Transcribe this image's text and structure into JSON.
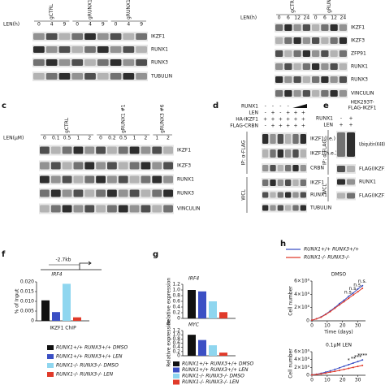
{
  "panels": {
    "a": {
      "time_label": "LEN(h)",
      "lanes": [
        "0",
        "4",
        "9",
        "0",
        "4",
        "9",
        "0",
        "4",
        "9"
      ],
      "samples": [
        "gCTRL",
        "gRUNX1",
        "gRUNX1 gRUNX3"
      ],
      "rows": [
        "IKZF1",
        "RUNX1",
        "RUNX3",
        "TUBULIN"
      ]
    },
    "b": {
      "time_label": "LEN(h)",
      "lanes": [
        "0",
        "6",
        "12",
        "24",
        "0",
        "6",
        "12",
        "24"
      ],
      "samples": [
        "gCTRL",
        "gRUNX1 gRUNX3"
      ],
      "rows": [
        "IKZF1",
        "IKZF3",
        "ZFP91",
        "RUNX1",
        "RUNX3",
        "VINCULIN"
      ]
    },
    "c": {
      "letter": "c",
      "dose_label": "LEN(μM)",
      "lanes": [
        "0",
        "0.1",
        "0.5",
        "1",
        "2",
        "0",
        "0.2",
        "0.5",
        "1",
        "2",
        "1",
        "2"
      ],
      "samples": [
        "gCTRL",
        "gRUNX1 #1",
        "gRUNX3 #6"
      ],
      "rows": [
        "IKZF1",
        "IKZF3",
        "RUNX1",
        "RUNX3",
        "VINCULIN"
      ]
    },
    "d": {
      "letter": "d",
      "conditions": [
        {
          "name": "RUNX1",
          "marks": [
            "-",
            "-",
            "-",
            "-"
          ]
        },
        {
          "name": "LEN",
          "marks": [
            "-",
            "+",
            "-",
            "+",
            "+",
            "+"
          ]
        },
        {
          "name": "HA-IKZF1",
          "marks": [
            "+",
            "+",
            "+",
            "+",
            "+",
            "+"
          ]
        },
        {
          "name": "FLAG-CRBN",
          "marks": [
            "-",
            "+",
            "+",
            "+",
            "+",
            "+"
          ]
        }
      ],
      "groups": [
        "IP: α-FLAG",
        "WCL"
      ],
      "rows": [
        "IKZF1(l.e.)",
        "IKZF1(h.e.)",
        "CRBN",
        "IKZF1",
        "RUNX1",
        "TUBULIN"
      ]
    },
    "e": {
      "letter": "e",
      "title": [
        "HEK293T-",
        "FLAG-IKZF1"
      ],
      "conditions": [
        {
          "name": "RUNX1",
          "marks": [
            "-",
            "+"
          ]
        },
        {
          "name": "LEN",
          "marks": [
            "+",
            "+"
          ]
        }
      ],
      "groups": [
        "IP: α-FLAG",
        "WCL"
      ],
      "rows": [
        "Ubiquitin(K48)",
        "FLAG(IKZF1)",
        "RUNX1",
        "FLAG(IKZF1)"
      ]
    }
  },
  "chart_data": [
    {
      "type": "bar",
      "letter": "f",
      "region": "-2.7kb",
      "gene": "IRF4",
      "ylabel": "% of Input",
      "categories": [
        "IKZF1 ChIP"
      ],
      "ylim": [
        0,
        0.02
      ],
      "yticks": [
        0,
        0.005,
        {
          "value": 0.01,
          "label": "0.010"
        },
        0.015,
        {
          "value": 0.02,
          "label": "0.020"
        }
      ],
      "series": [
        {
          "name": "RUNX1+/+ RUNX3+/+ DMSO",
          "color": "#111111",
          "values": [
            0.0105
          ]
        },
        {
          "name": "RUNX1+/+ RUNX3+/+ LEN",
          "color": "#3b4fc4",
          "values": [
            0.0045
          ]
        },
        {
          "name": "RUNX1-/- RUNX3-/- DMSO",
          "color": "#8fd6ef",
          "values": [
            0.019
          ]
        },
        {
          "name": "RUNX1-/- RUNX3-/- LEN",
          "color": "#e03a2a",
          "values": [
            0.0018
          ]
        }
      ]
    },
    {
      "type": "bar",
      "letter": "g",
      "title": "IRF4",
      "ylabel": "Relative expression",
      "ylim": [
        0,
        1.2
      ],
      "yticks": [
        0,
        0.2,
        0.4,
        0.6,
        0.8,
        {
          "value": 1,
          "label": "1.0"
        },
        1.2
      ],
      "series": [
        {
          "color": "#111111",
          "values": [
            1.0
          ]
        },
        {
          "color": "#3b4fc4",
          "values": [
            0.95
          ]
        },
        {
          "color": "#8fd6ef",
          "values": [
            0.6
          ]
        },
        {
          "color": "#e03a2a",
          "values": [
            0.22
          ]
        }
      ]
    },
    {
      "type": "bar",
      "title": "MYC",
      "ylabel": "Relative expression",
      "ylim": [
        0,
        1.2
      ],
      "yticks": [
        0,
        0.2,
        0.4,
        0.6,
        0.8,
        {
          "value": 1,
          "label": "1.0"
        },
        1.2
      ],
      "series": [
        {
          "name": "RUNX1+/+ RUNX3+/+ DMSO",
          "color": "#111111",
          "values": [
            1.0
          ]
        },
        {
          "name": "RUNX1+/+ RUNX3+/+ LEN",
          "color": "#3b4fc4",
          "values": [
            0.75
          ]
        },
        {
          "name": "RUNX1-/- RUNX3-/- DMSO",
          "color": "#8fd6ef",
          "values": [
            0.5
          ]
        },
        {
          "name": "RUNX1-/- RUNX3-/- LEN",
          "color": "#e03a2a",
          "values": [
            0.15
          ]
        }
      ]
    },
    {
      "type": "line",
      "letter": "h",
      "title": "DMSO",
      "ylabel": "Cell number",
      "xlabel": "Time (days)",
      "x": [
        0,
        3,
        6,
        9,
        12,
        15,
        18,
        21,
        24,
        27,
        30,
        33
      ],
      "xlim": [
        0,
        35
      ],
      "xticks": [
        0,
        10,
        20,
        30
      ],
      "ylim": [
        0,
        6000000
      ],
      "yticks": [
        0,
        {
          "value": 2000000,
          "label": "2×10⁶"
        },
        {
          "value": 4000000,
          "label": "4×10⁶"
        },
        {
          "value": 6000000,
          "label": "6×10⁶"
        }
      ],
      "annotations": [
        "n.s.",
        "n.s.",
        "n.s.",
        "n.s."
      ],
      "series": [
        {
          "name": "RUNX1+/+ RUNX3+/+",
          "color": "#3b4fc4",
          "values": [
            100000,
            300000,
            600000,
            1000000,
            1500000,
            2000000,
            2600000,
            3100000,
            3700000,
            4200000,
            4800000,
            5300000
          ]
        },
        {
          "name": "RUNX1-/- RUNX3-/-",
          "color": "#e03a2a",
          "values": [
            100000,
            300000,
            550000,
            950000,
            1400000,
            1900000,
            2400000,
            2900000,
            3400000,
            3900000,
            4400000,
            4900000
          ]
        }
      ]
    },
    {
      "type": "line",
      "title": "0.1μM LEN",
      "ylabel": "Cell number",
      "x": [
        0,
        3,
        6,
        9,
        12,
        15,
        18,
        21,
        24,
        27,
        30,
        33
      ],
      "xlim": [
        0,
        35
      ],
      "xticks": [
        0,
        10,
        20,
        30
      ],
      "ylim": [
        0,
        6000000
      ],
      "yticks": [
        0,
        {
          "value": 2000000,
          "label": "2×10⁶"
        },
        {
          "value": 4000000,
          "label": "4×10⁶"
        },
        {
          "value": 6000000,
          "label": "6×10⁶"
        }
      ],
      "annotations": [
        "*",
        "**",
        "***",
        "****"
      ],
      "series": [
        {
          "color": "#3b4fc4",
          "values": [
            100000,
            250000,
            500000,
            800000,
            1100000,
            1500000,
            1900000,
            2300000,
            2700000,
            3100000,
            3500000,
            3900000
          ]
        },
        {
          "color": "#e03a2a",
          "values": [
            100000,
            200000,
            350000,
            550000,
            800000,
            1000000,
            1250000,
            1500000,
            1750000,
            2000000,
            2250000,
            2500000
          ]
        }
      ]
    }
  ]
}
